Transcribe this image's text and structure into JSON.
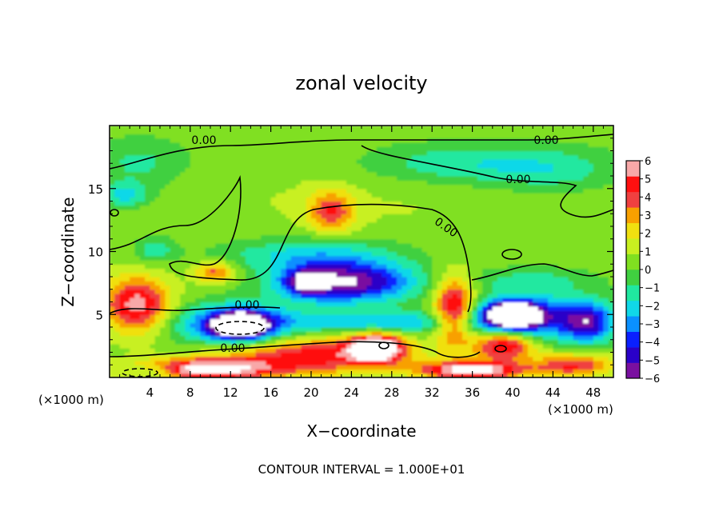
{
  "chart_data": {
    "type": "heatmap",
    "title": "zonal velocity",
    "xlabel": "X−coordinate",
    "ylabel": "Z−coordinate",
    "x_unit_left": "(×1000 m)",
    "x_unit_right": "(×1000 m)",
    "xlim": [
      0,
      50
    ],
    "ylim": [
      0,
      20
    ],
    "x_ticks": [
      "4",
      "8",
      "12",
      "16",
      "20",
      "24",
      "28",
      "32",
      "36",
      "40",
      "44",
      "48"
    ],
    "y_ticks": [
      "5",
      "10",
      "15"
    ],
    "colorbar_ticks": [
      "6",
      "5",
      "4",
      "3",
      "2",
      "1",
      "0",
      "−1",
      "−2",
      "−3",
      "−4",
      "−5",
      "−6"
    ],
    "colorbar_range": [
      -6,
      6
    ],
    "colorbar_colors": [
      "#7a0fa0",
      "#2a00c8",
      "#0a20ff",
      "#0a90ff",
      "#10d8e8",
      "#20e8a0",
      "#40d040",
      "#80e020",
      "#c8f020",
      "#f0e010",
      "#f8a000",
      "#f04040",
      "#ff1010",
      "#f8a8a8"
    ],
    "contour_labels": [
      "0.00",
      "0.00",
      "0.00",
      "0.00",
      "0.00",
      "0.00"
    ],
    "footer": "CONTOUR INTERVAL = 1.000E+01",
    "blobs": [
      {
        "x": 25,
        "y": 14,
        "rx": 30,
        "ry": 4,
        "v": 0.5
      },
      {
        "x": 3,
        "y": 17,
        "rx": 5,
        "ry": 2,
        "v": -1.6
      },
      {
        "x": 34,
        "y": 17,
        "rx": 9,
        "ry": 1.6,
        "v": -2
      },
      {
        "x": 44,
        "y": 16.5,
        "rx": 7,
        "ry": 1.8,
        "v": -1.8
      },
      {
        "x": 22,
        "y": 13.2,
        "rx": 2.2,
        "ry": 1.6,
        "v": 3.6
      },
      {
        "x": 1.5,
        "y": 14.5,
        "rx": 2.5,
        "ry": 1,
        "v": -2.6
      },
      {
        "x": 4.5,
        "y": 10.2,
        "rx": 2,
        "ry": 1,
        "v": -2
      },
      {
        "x": 20,
        "y": 9.8,
        "rx": 9,
        "ry": 1.4,
        "v": -2.4
      },
      {
        "x": 23.5,
        "y": 7.6,
        "rx": 6.5,
        "ry": 1.6,
        "v": -6.5
      },
      {
        "x": 19.5,
        "y": 7.6,
        "rx": 2,
        "ry": 1,
        "v": -4
      },
      {
        "x": 10.5,
        "y": 8.4,
        "rx": 2,
        "ry": 0.8,
        "v": 3.5
      },
      {
        "x": 2.7,
        "y": 5.8,
        "rx": 3.3,
        "ry": 2.2,
        "v": 5.3
      },
      {
        "x": 12.5,
        "y": 4.2,
        "rx": 6,
        "ry": 1.6,
        "v": -5
      },
      {
        "x": 13,
        "y": 4.2,
        "rx": 2.6,
        "ry": 1,
        "v": -7.5
      },
      {
        "x": 27,
        "y": 4.4,
        "rx": 9,
        "ry": 0.9,
        "v": -3
      },
      {
        "x": 20,
        "y": 1.8,
        "rx": 9,
        "ry": 1.5,
        "v": 4.5
      },
      {
        "x": 26.5,
        "y": 2.4,
        "rx": 2.6,
        "ry": 1.1,
        "v": 7.2
      },
      {
        "x": 9,
        "y": 0.7,
        "rx": 7,
        "ry": 0.8,
        "v": 6.5
      },
      {
        "x": 4.5,
        "y": 0.6,
        "rx": 3,
        "ry": 0.6,
        "v": -3
      },
      {
        "x": 34.2,
        "y": 5.4,
        "rx": 2,
        "ry": 2.6,
        "v": 5.8
      },
      {
        "x": 39.2,
        "y": 2.6,
        "rx": 3,
        "ry": 1.2,
        "v": 5.5
      },
      {
        "x": 41.5,
        "y": 4.8,
        "rx": 6,
        "ry": 1.8,
        "v": -4.8
      },
      {
        "x": 40,
        "y": 5,
        "rx": 2.6,
        "ry": 1,
        "v": -7.5
      },
      {
        "x": 47.5,
        "y": 4.4,
        "rx": 2.5,
        "ry": 1.6,
        "v": -4.6
      },
      {
        "x": 36,
        "y": 0.6,
        "rx": 5,
        "ry": 0.7,
        "v": 6.5
      },
      {
        "x": 46,
        "y": 1,
        "rx": 4,
        "ry": 0.9,
        "v": 4
      },
      {
        "x": 42,
        "y": 7.8,
        "rx": 6,
        "ry": 1,
        "v": -1.5
      }
    ]
  }
}
